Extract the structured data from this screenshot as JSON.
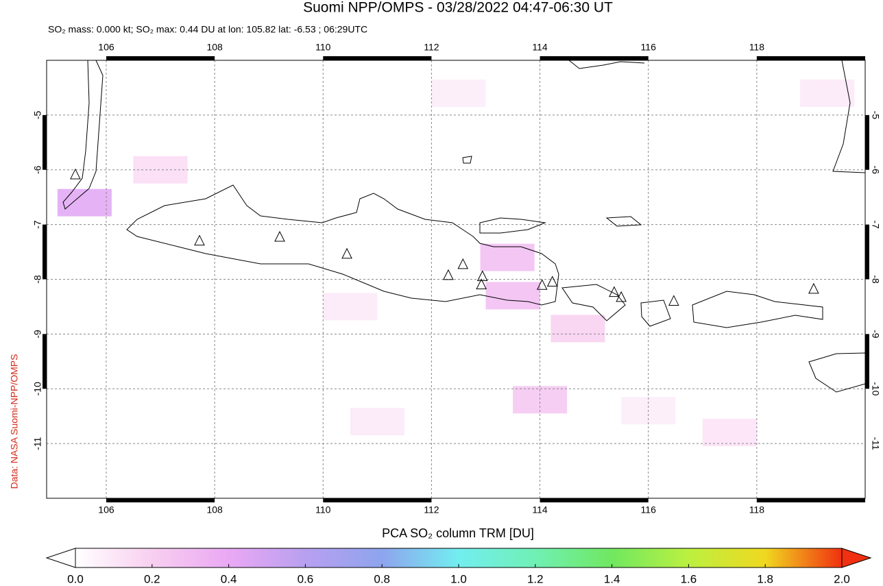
{
  "chart_data": {
    "type": "map",
    "title": "Suomi NPP/OMPS - 03/28/2022 04:47-06:30 UT",
    "subtitle": "SO₂ mass: 0.000 kt; SO₂ max: 0.44 DU at lon: 105.82 lat: -6.53 ; 06:29UTC",
    "source": "Data: NASA Suomi-NPP/OMPS",
    "xlim": [
      104.9,
      120
    ],
    "ylim": [
      -12,
      -4
    ],
    "xticks": [
      106,
      108,
      110,
      112,
      114,
      116,
      118
    ],
    "yticks": [
      -5,
      -6,
      -7,
      -8,
      -9,
      -10,
      -11
    ],
    "grid": true,
    "cells": {
      "x": [
        105.6,
        113.4,
        113.5,
        114.7,
        114.0,
        107.0,
        110.5,
        117.5,
        119.3,
        112.5,
        111.0,
        116.0
      ],
      "y": [
        -6.6,
        -7.6,
        -8.3,
        -8.9,
        -10.2,
        -6.0,
        -8.5,
        -10.8,
        -4.6,
        -4.6,
        -10.6,
        -10.4
      ],
      "values": [
        0.44,
        0.3,
        0.3,
        0.2,
        0.25,
        0.15,
        0.1,
        0.12,
        0.1,
        0.08,
        0.1,
        0.08
      ]
    },
    "volcanoes": {
      "x": [
        105.43,
        107.72,
        109.2,
        110.44,
        112.31,
        112.58,
        112.94,
        112.92,
        114.04,
        114.23,
        115.37,
        115.5,
        116.47,
        119.05
      ],
      "y": [
        -6.09,
        -7.3,
        -7.23,
        -7.54,
        -7.93,
        -7.73,
        -7.95,
        -8.1,
        -8.11,
        -8.05,
        -8.24,
        -8.33,
        -8.4,
        -8.18
      ]
    },
    "colorbar": {
      "label": "PCA SO₂ column TRM [DU]",
      "clim": [
        0,
        2
      ],
      "colormap": [
        "#ffffff",
        "#f8cff0",
        "#eaa8f4",
        "#b8a0f0",
        "#8ea4ee",
        "#72eef0",
        "#70f0b4",
        "#70e860",
        "#bcf040",
        "#f0d820",
        "#f03010"
      ],
      "ticks": [
        {
          "value": 0,
          "label": "0.0"
        },
        {
          "value": 0.2,
          "label": "0.2"
        },
        {
          "value": 0.4,
          "label": "0.4"
        },
        {
          "value": 0.6,
          "label": "0.6"
        },
        {
          "value": 0.8,
          "label": "0.8"
        },
        {
          "value": 1,
          "label": "1.0"
        },
        {
          "value": 1.2,
          "label": "1.2"
        },
        {
          "value": 1.4,
          "label": "1.4"
        },
        {
          "value": 1.6,
          "label": "1.6"
        },
        {
          "value": 1.8,
          "label": "1.8"
        },
        {
          "value": 2,
          "label": "2.0"
        }
      ]
    }
  }
}
